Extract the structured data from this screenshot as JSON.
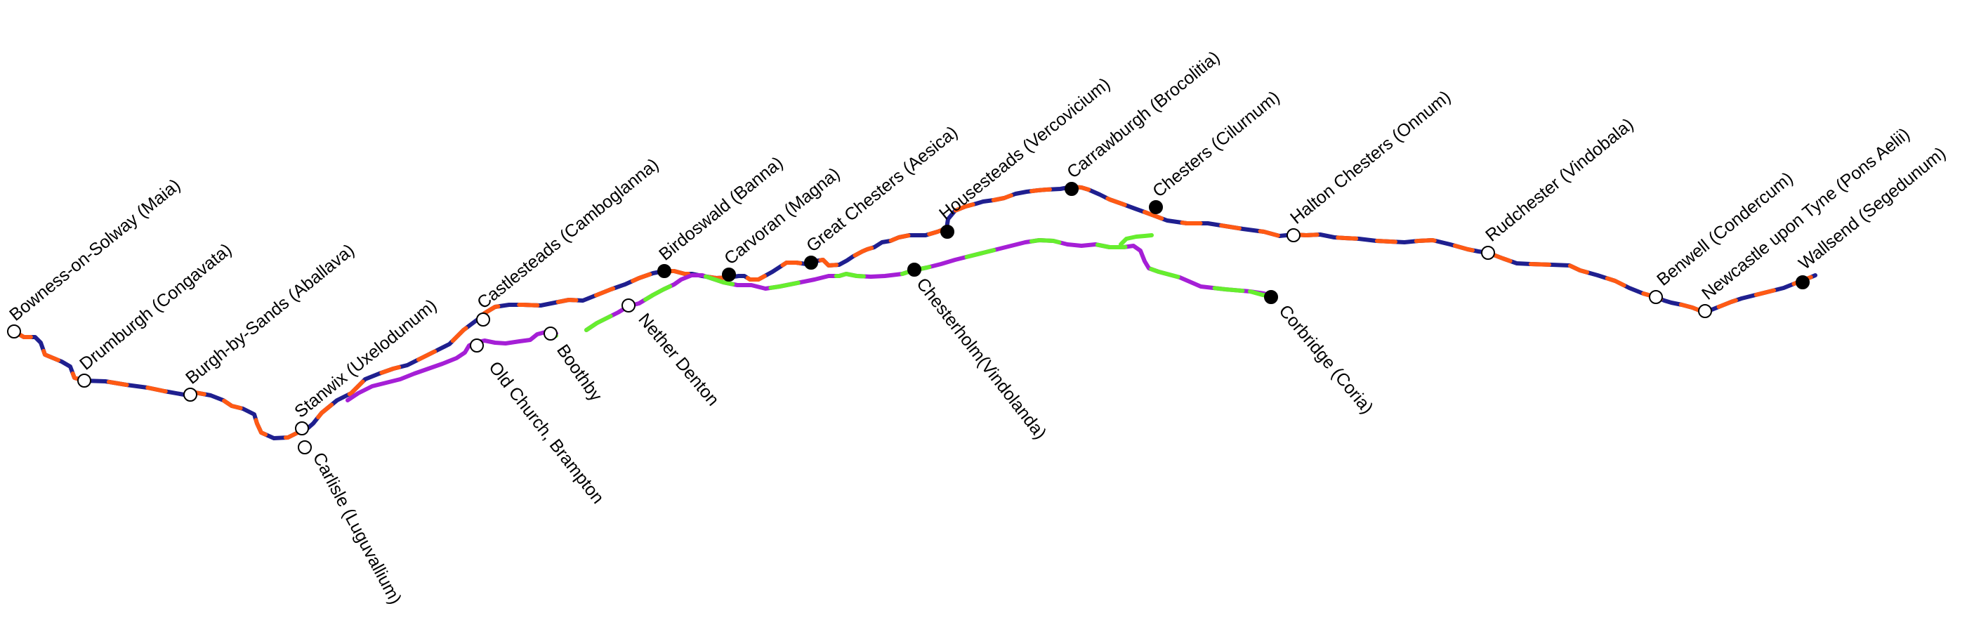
{
  "colors": {
    "wall_primary": "#1f1f8f",
    "wall_secondary": "#ff5a14",
    "stanegate_primary": "#a51fd6",
    "stanegate_secondary": "#66ee2e",
    "minor_fort_fill": "#ffffff",
    "major_fort_fill": "#000000",
    "background": "#ffffff"
  },
  "stations": [
    {
      "id": "bowness",
      "label": "Bowness-on-Solway (Maia)",
      "type": "minor"
    },
    {
      "id": "drumburgh",
      "label": "Drumburgh (Congavata)",
      "type": "minor"
    },
    {
      "id": "burgh",
      "label": "Burgh-by-Sands (Aballava)",
      "type": "minor"
    },
    {
      "id": "stanwix",
      "label": "Stanwix (Uxelodunum)",
      "type": "minor"
    },
    {
      "id": "carlisle",
      "label": "Carlisle (Luguvallium)",
      "type": "minor"
    },
    {
      "id": "castlesteads",
      "label": "Castlesteads (Camboglanna)",
      "type": "minor"
    },
    {
      "id": "oldchurch",
      "label": "Old Church, Brampton",
      "type": "minor"
    },
    {
      "id": "boothby",
      "label": "Boothby",
      "type": "minor"
    },
    {
      "id": "netherdenton",
      "label": "Nether Denton",
      "type": "minor"
    },
    {
      "id": "birdoswald",
      "label": "Birdoswald (Banna)",
      "type": "major"
    },
    {
      "id": "carvoran",
      "label": "Carvoran (Magna)",
      "type": "major"
    },
    {
      "id": "greatchesters",
      "label": "Great Chesters (Aesica)",
      "type": "major"
    },
    {
      "id": "chesterholm",
      "label": "Chesterholm(Vindolanda)",
      "type": "major"
    },
    {
      "id": "housesteads",
      "label": "Housesteads (Vercovicium)",
      "type": "major"
    },
    {
      "id": "carrawburgh",
      "label": "Carrawburgh (Brocolitia)",
      "type": "major"
    },
    {
      "id": "chesters",
      "label": "Chesters (Cilurnum)",
      "type": "major"
    },
    {
      "id": "corbridge",
      "label": "Corbridge (Coria)",
      "type": "major"
    },
    {
      "id": "halton",
      "label": "Halton Chesters (Onnum)",
      "type": "minor"
    },
    {
      "id": "rudchester",
      "label": "Rudchester (Vindobala)",
      "type": "minor"
    },
    {
      "id": "benwell",
      "label": "Benwell (Condercum)",
      "type": "minor"
    },
    {
      "id": "newcastle",
      "label": "Newcastle upon Tyne (Pons Aelii)",
      "type": "minor"
    },
    {
      "id": "wallsend",
      "label": "Wallsend (Segedunum)",
      "type": "major"
    }
  ]
}
